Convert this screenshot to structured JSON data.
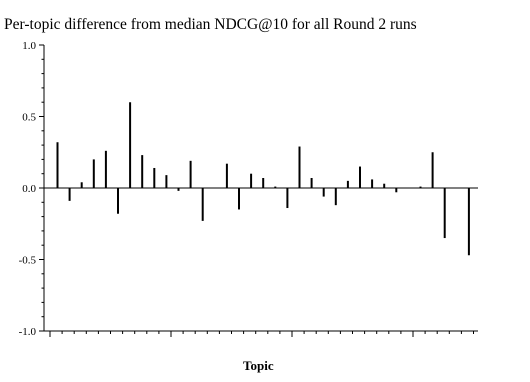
{
  "chart_data": {
    "type": "bar",
    "title": "Per-topic difference from median NDCG@10 for all Round 2 runs",
    "xlabel": "Topic",
    "ylabel": "",
    "ylim": [
      -1.0,
      1.0
    ],
    "yticks": [
      "1.0",
      "0.5",
      "0.0",
      "-0.5",
      "-1.0"
    ],
    "ytick_values": [
      1.0,
      0.5,
      0.0,
      -0.5,
      -1.0
    ],
    "grid": false,
    "values": [
      0.32,
      -0.09,
      0.04,
      0.2,
      0.26,
      -0.18,
      0.6,
      0.23,
      0.14,
      0.09,
      -0.02,
      0.19,
      -0.23,
      0.0,
      0.17,
      -0.15,
      0.1,
      0.07,
      0.01,
      -0.14,
      0.29,
      0.07,
      -0.06,
      -0.12,
      0.05,
      0.15,
      0.06,
      0.03,
      -0.03,
      0.0,
      0.01,
      0.25,
      -0.35,
      0.0,
      -0.47
    ]
  }
}
